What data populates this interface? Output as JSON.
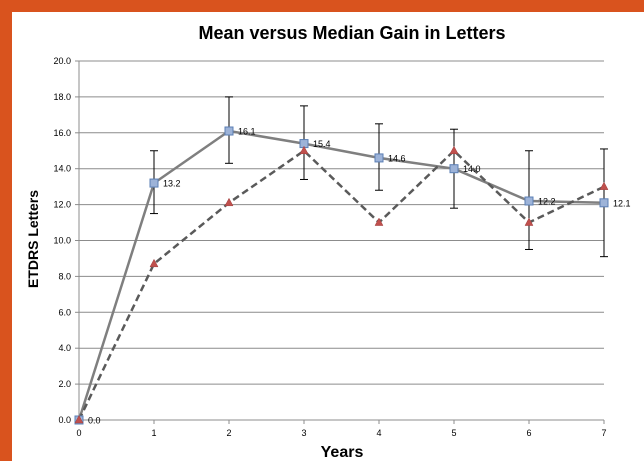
{
  "chart_data": {
    "type": "line",
    "title": "Mean  versus Median Gain in Letters",
    "xlabel": "Years",
    "ylabel": "ETDRS Letters",
    "x": [
      0,
      1,
      2,
      3,
      4,
      5,
      6,
      7
    ],
    "x_tick_labels": [
      "0",
      "1",
      "2",
      "3",
      "4",
      "5",
      "6",
      "7"
    ],
    "y_tick_labels": [
      "0.0",
      "2.0",
      "4.0",
      "6.0",
      "8.0",
      "10.0",
      "12.0",
      "14.0",
      "16.0",
      "18.0",
      "20.0"
    ],
    "ylim": [
      0,
      20
    ],
    "grid": "horizontal",
    "series": [
      {
        "style": "solid",
        "marker": "square",
        "color": "#7f7f7f",
        "marker_color": "#9db3d8",
        "values": [
          0.0,
          13.2,
          16.1,
          15.4,
          14.6,
          14.0,
          12.2,
          12.1
        ],
        "data_labels": [
          "0.0",
          "13.2",
          "16.1",
          "15.4",
          "14.6",
          "14.0",
          "12.2",
          "12.1"
        ],
        "error_low": [
          0.0,
          11.5,
          14.3,
          13.4,
          12.8,
          11.8,
          9.5,
          9.1
        ],
        "error_high": [
          0.0,
          15.0,
          18.0,
          17.5,
          16.5,
          16.2,
          15.0,
          15.1
        ]
      },
      {
        "style": "dashed",
        "marker": "triangle",
        "color": "#5a5a5a",
        "marker_color": "#c0504d",
        "values": [
          0.0,
          8.7,
          12.1,
          15.0,
          11.0,
          15.0,
          11.0,
          13.0
        ]
      }
    ]
  }
}
